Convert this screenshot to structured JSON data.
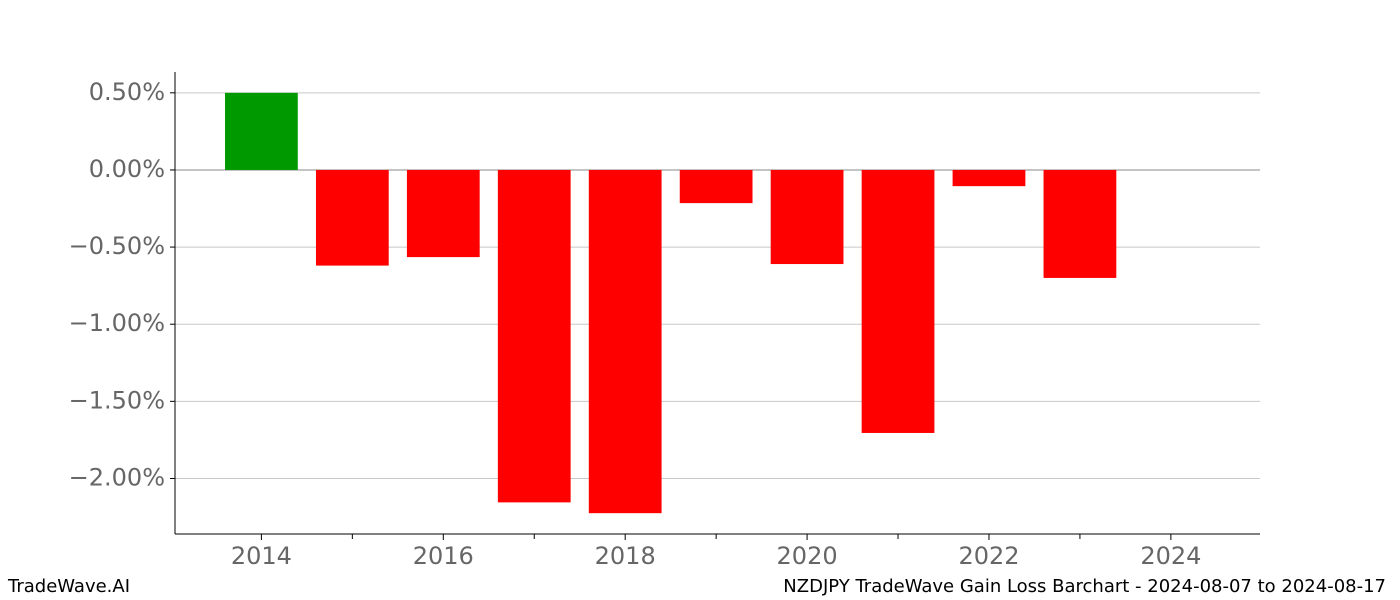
{
  "chart_data": {
    "type": "bar",
    "x": [
      2014,
      2015,
      2016,
      2017,
      2018,
      2019,
      2020,
      2021,
      2022,
      2023
    ],
    "values": [
      0.5,
      -0.62,
      -0.565,
      -2.155,
      -2.225,
      -0.215,
      -0.61,
      -1.705,
      -0.105,
      -0.7
    ],
    "colors": [
      "#009900",
      "#ff0000",
      "#ff0000",
      "#ff0000",
      "#ff0000",
      "#ff0000",
      "#ff0000",
      "#ff0000",
      "#ff0000",
      "#ff0000"
    ],
    "bar_width": 0.8,
    "xlim": [
      2013.05,
      2024.98
    ],
    "xticks": [
      2014,
      2016,
      2018,
      2020,
      2022,
      2024
    ],
    "xminorticks": [
      2015,
      2017,
      2019,
      2021,
      2023
    ],
    "ylim": [
      -2.36,
      0.635
    ],
    "yticks": [
      {
        "value": 0.5,
        "label": "0.50%"
      },
      {
        "value": 0,
        "label": "0.00%"
      },
      {
        "value": -0.5,
        "label": "−0.50%"
      },
      {
        "value": -1,
        "label": "−1.00%"
      },
      {
        "value": -1.5,
        "label": "−1.50%"
      },
      {
        "value": -2,
        "label": "−2.00%"
      }
    ],
    "grid": true,
    "watermark": "TradeWave.AI",
    "caption": "NZDJPY TradeWave Gain Loss Barchart - 2024-08-07 to 2024-08-17"
  }
}
